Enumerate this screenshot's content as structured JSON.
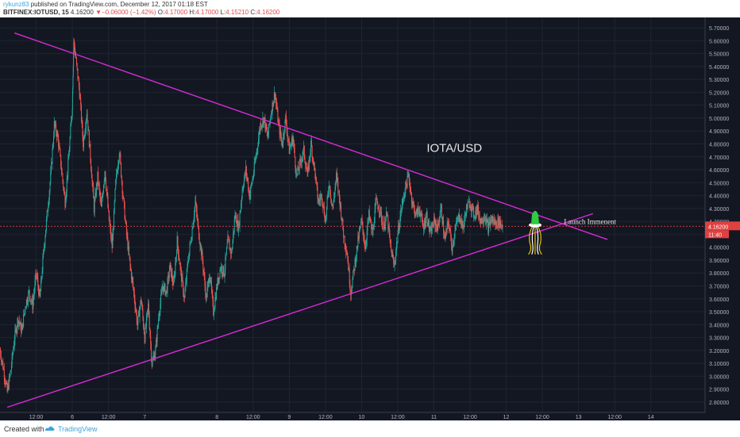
{
  "header": {
    "author": "rykunz83",
    "published": " published on TradingView.com, December 12, 2017 01:18 EST",
    "symbol": "BITFINEX:IOTUSD, 15",
    "last": "4.16200",
    "change_arrow": "▼",
    "change": "−0.06000 (−1.42%)",
    "o_label": "O:",
    "o_value": "4.17000",
    "h_label": "H:",
    "h_value": "4.17000",
    "l_label": "L:",
    "l_value": "4.15210",
    "c_label": "C:",
    "c_value": "4.16200"
  },
  "footer": {
    "created_with": "Created with",
    "brand": "TradingView"
  },
  "colors": {
    "background": "#131722",
    "grid": "#1e2532",
    "up": "#26a69a",
    "down": "#ef5350",
    "trendline": "#d62bd6",
    "price_line": "#e04040",
    "axis_text": "#b2b5be",
    "rocket": "#2ecc40"
  },
  "chart_data": {
    "type": "candlestick",
    "symbol": "BITFINEX:IOTUSD",
    "interval": "15",
    "title": "IOTA/USD",
    "annotation": "Launch Immenent",
    "last_price": "4.16200",
    "countdown": "11:40",
    "ylim": [
      2.72,
      5.78
    ],
    "y_ticks": [
      "5.70000",
      "5.60000",
      "5.50000",
      "5.40000",
      "5.30000",
      "5.20000",
      "5.10000",
      "5.00000",
      "4.90000",
      "4.80000",
      "4.70000",
      "4.60000",
      "4.50000",
      "4.40000",
      "4.30000",
      "4.20000",
      "4.10000",
      "4.00000",
      "3.90000",
      "3.80000",
      "3.70000",
      "3.60000",
      "3.50000",
      "3.40000",
      "3.30000",
      "3.20000",
      "3.10000",
      "3.00000",
      "2.90000",
      "2.80000"
    ],
    "y_tick_values": [
      5.7,
      5.6,
      5.5,
      5.4,
      5.3,
      5.2,
      5.1,
      5.0,
      4.9,
      4.8,
      4.7,
      4.6,
      4.5,
      4.4,
      4.3,
      4.2,
      4.1,
      4.0,
      3.9,
      3.8,
      3.7,
      3.6,
      3.5,
      3.4,
      3.3,
      3.2,
      3.1,
      3.0,
      2.9,
      2.8
    ],
    "x_range_days": [
      5.0,
      14.75
    ],
    "x_ticks": [
      "12:00",
      "6",
      "12:00",
      "7",
      "8",
      "12:00",
      "9",
      "12:00",
      "10",
      "12:00",
      "11",
      "12:00",
      "12",
      "12:00",
      "13",
      "12:00",
      "14"
    ],
    "x_tick_days": [
      5.5,
      6.0,
      6.5,
      7.0,
      8.0,
      8.5,
      9.0,
      9.5,
      10.0,
      10.5,
      11.0,
      11.5,
      12.0,
      12.5,
      13.0,
      13.5,
      14.0
    ],
    "price_path": [
      [
        5.0,
        3.2
      ],
      [
        5.05,
        3.05
      ],
      [
        5.1,
        2.88
      ],
      [
        5.15,
        3.05
      ],
      [
        5.2,
        3.3
      ],
      [
        5.25,
        3.45
      ],
      [
        5.3,
        3.35
      ],
      [
        5.35,
        3.55
      ],
      [
        5.4,
        3.65
      ],
      [
        5.45,
        3.55
      ],
      [
        5.5,
        3.8
      ],
      [
        5.55,
        3.6
      ],
      [
        5.6,
        3.95
      ],
      [
        5.65,
        4.25
      ],
      [
        5.7,
        4.55
      ],
      [
        5.75,
        4.95
      ],
      [
        5.8,
        4.85
      ],
      [
        5.85,
        4.6
      ],
      [
        5.9,
        4.35
      ],
      [
        5.95,
        4.7
      ],
      [
        6.0,
        5.1
      ],
      [
        6.02,
        5.6
      ],
      [
        6.05,
        5.45
      ],
      [
        6.1,
        5.2
      ],
      [
        6.15,
        4.8
      ],
      [
        6.2,
        5.05
      ],
      [
        6.25,
        4.7
      ],
      [
        6.3,
        4.3
      ],
      [
        6.35,
        4.55
      ],
      [
        6.4,
        4.3
      ],
      [
        6.45,
        4.6
      ],
      [
        6.5,
        4.25
      ],
      [
        6.55,
        4.0
      ],
      [
        6.6,
        4.5
      ],
      [
        6.65,
        4.75
      ],
      [
        6.7,
        4.4
      ],
      [
        6.75,
        4.1
      ],
      [
        6.8,
        3.85
      ],
      [
        6.85,
        3.65
      ],
      [
        6.9,
        3.4
      ],
      [
        6.95,
        3.6
      ],
      [
        7.0,
        3.3
      ],
      [
        7.05,
        3.55
      ],
      [
        7.1,
        3.1
      ],
      [
        7.15,
        3.2
      ],
      [
        7.2,
        3.5
      ],
      [
        7.25,
        3.7
      ],
      [
        7.3,
        3.65
      ],
      [
        7.35,
        3.85
      ],
      [
        7.4,
        3.7
      ],
      [
        7.45,
        4.05
      ],
      [
        7.5,
        3.8
      ],
      [
        7.55,
        3.6
      ],
      [
        7.6,
        3.9
      ],
      [
        7.65,
        4.1
      ],
      [
        7.7,
        4.35
      ],
      [
        7.75,
        4.1
      ],
      [
        7.8,
        3.9
      ],
      [
        7.85,
        3.6
      ],
      [
        7.9,
        3.8
      ],
      [
        7.95,
        3.5
      ],
      [
        8.0,
        3.7
      ],
      [
        8.05,
        3.85
      ],
      [
        8.1,
        3.8
      ],
      [
        8.15,
        4.05
      ],
      [
        8.2,
        3.95
      ],
      [
        8.25,
        4.25
      ],
      [
        8.3,
        4.15
      ],
      [
        8.35,
        4.45
      ],
      [
        8.4,
        4.6
      ],
      [
        8.45,
        4.4
      ],
      [
        8.5,
        4.55
      ],
      [
        8.55,
        4.75
      ],
      [
        8.6,
        4.95
      ],
      [
        8.65,
        5.0
      ],
      [
        8.7,
        4.85
      ],
      [
        8.75,
        5.05
      ],
      [
        8.8,
        5.2
      ],
      [
        8.85,
        4.95
      ],
      [
        8.9,
        4.8
      ],
      [
        8.95,
        5.0
      ],
      [
        9.0,
        4.75
      ],
      [
        9.05,
        4.85
      ],
      [
        9.1,
        4.55
      ],
      [
        9.15,
        4.65
      ],
      [
        9.2,
        4.75
      ],
      [
        9.25,
        4.55
      ],
      [
        9.3,
        4.8
      ],
      [
        9.35,
        4.6
      ],
      [
        9.4,
        4.35
      ],
      [
        9.45,
        4.4
      ],
      [
        9.5,
        4.2
      ],
      [
        9.55,
        4.5
      ],
      [
        9.6,
        4.3
      ],
      [
        9.65,
        4.55
      ],
      [
        9.7,
        4.35
      ],
      [
        9.75,
        4.1
      ],
      [
        9.8,
        3.95
      ],
      [
        9.85,
        3.65
      ],
      [
        9.9,
        3.85
      ],
      [
        9.95,
        4.05
      ],
      [
        10.0,
        4.2
      ],
      [
        10.05,
        4.0
      ],
      [
        10.1,
        4.25
      ],
      [
        10.15,
        4.1
      ],
      [
        10.2,
        4.35
      ],
      [
        10.25,
        4.3
      ],
      [
        10.3,
        4.15
      ],
      [
        10.35,
        4.25
      ],
      [
        10.4,
        4.0
      ],
      [
        10.45,
        3.85
      ],
      [
        10.5,
        4.1
      ],
      [
        10.55,
        4.3
      ],
      [
        10.6,
        4.45
      ],
      [
        10.65,
        4.55
      ],
      [
        10.7,
        4.35
      ],
      [
        10.75,
        4.25
      ],
      [
        10.8,
        4.3
      ],
      [
        10.85,
        4.15
      ],
      [
        10.9,
        4.25
      ],
      [
        10.95,
        4.1
      ],
      [
        11.0,
        4.2
      ],
      [
        11.05,
        4.15
      ],
      [
        11.1,
        4.3
      ],
      [
        11.15,
        4.05
      ],
      [
        11.2,
        4.2
      ],
      [
        11.25,
        4.0
      ],
      [
        11.3,
        4.15
      ],
      [
        11.35,
        4.25
      ],
      [
        11.4,
        4.15
      ],
      [
        11.45,
        4.3
      ],
      [
        11.5,
        4.35
      ],
      [
        11.55,
        4.25
      ],
      [
        11.6,
        4.3
      ],
      [
        11.65,
        4.2
      ],
      [
        11.7,
        4.25
      ],
      [
        11.75,
        4.15
      ],
      [
        11.8,
        4.22
      ],
      [
        11.85,
        4.18
      ],
      [
        11.9,
        4.2
      ],
      [
        11.95,
        4.16
      ]
    ],
    "trendlines": [
      {
        "name": "upper",
        "from": [
          5.2,
          5.66
        ],
        "to": [
          13.4,
          4.06
        ]
      },
      {
        "name": "lower",
        "from": [
          5.1,
          2.76
        ],
        "to": [
          13.2,
          4.26
        ]
      }
    ],
    "last_price_value": 4.162,
    "rocket_day": 12.4
  }
}
